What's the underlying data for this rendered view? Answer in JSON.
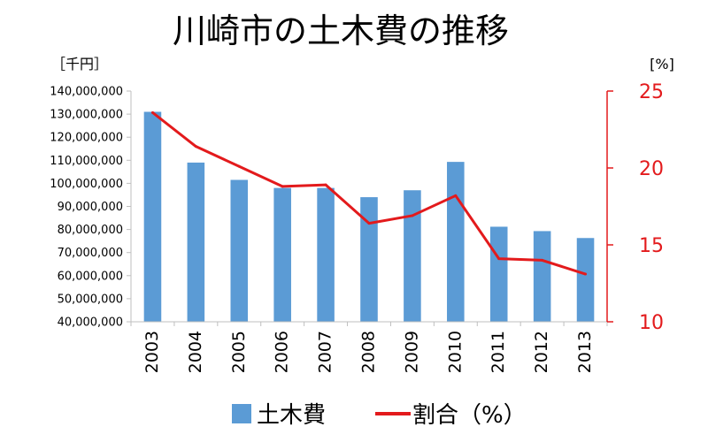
{
  "chart_data": {
    "type": "bar+line",
    "title": "川崎市の土木費の推移",
    "y_unit": "［千円］",
    "y2_unit": "[%]",
    "categories": [
      "2003",
      "2004",
      "2005",
      "2006",
      "2007",
      "2008",
      "2009",
      "2010",
      "2011",
      "2012",
      "2013"
    ],
    "series": [
      {
        "name": "土木費",
        "type": "bar",
        "axis": "left",
        "color": "#5b9bd5",
        "values": [
          131000000,
          109000000,
          101500000,
          98000000,
          98000000,
          94000000,
          97000000,
          109300000,
          81200000,
          79300000,
          76300000
        ]
      },
      {
        "name": "割合（%）",
        "type": "line",
        "axis": "right",
        "color": "#e31a1c",
        "values": [
          23.6,
          21.4,
          20.1,
          18.8,
          18.9,
          16.4,
          16.9,
          18.2,
          14.1,
          14.0,
          13.1
        ]
      }
    ],
    "ylim": [
      40000000,
      140000000
    ],
    "y_ticks": [
      "140,000,000",
      "130,000,000",
      "120,000,000",
      "110,000,000",
      "100,000,000",
      "90,000,000",
      "80,000,000",
      "70,000,000",
      "60,000,000",
      "50,000,000",
      "40,000,000"
    ],
    "y_tick_values": [
      140000000,
      130000000,
      120000000,
      110000000,
      100000000,
      90000000,
      80000000,
      70000000,
      60000000,
      50000000,
      40000000
    ],
    "y2lim": [
      10,
      25
    ],
    "y2_ticks": [
      "25",
      "20",
      "15",
      "10"
    ],
    "y2_tick_values": [
      25,
      20,
      15,
      10
    ],
    "y2_color": "#e31a1c",
    "legend_position": "bottom",
    "grid": false
  }
}
